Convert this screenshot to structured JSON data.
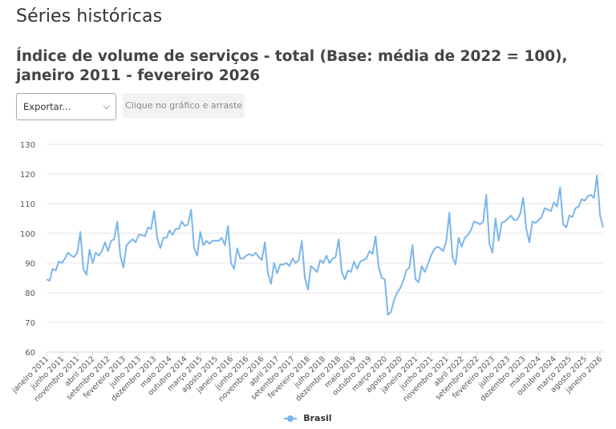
{
  "page": {
    "title": "Séries históricas",
    "export_label": "Exportar...",
    "drag_hint": "Clique no gráfico e arraste"
  },
  "colors": {
    "series": "#7cb5ec",
    "grid": "#e6e6e6",
    "text": "#333333"
  },
  "chart_data": {
    "type": "line",
    "title": "Índice de volume de serviços - total (Base: média de 2022 = 100), janeiro 2011 - fevereiro 2026",
    "ylim": [
      60,
      130
    ],
    "yticks": [
      60,
      70,
      80,
      90,
      100,
      110,
      120,
      130
    ],
    "grid": true,
    "legend_position": "bottom-center",
    "x_start": "2011-01",
    "x_end": "2026-02",
    "xtick_labels": [
      "janeiro 2011",
      "junho 2011",
      "novembro 2011",
      "abril 2012",
      "setembro 2012",
      "fevereiro 2013",
      "julho 2013",
      "dezembro 2013",
      "maio 2014",
      "outubro 2014",
      "março 2015",
      "agosto 2015",
      "janeiro 2016",
      "junho 2016",
      "novembro 2016",
      "abril 2017",
      "setembro 2017",
      "fevereiro 2018",
      "julho 2018",
      "dezembro 2018",
      "maio 2019",
      "outubro 2019",
      "março 2020",
      "agosto 2020",
      "janeiro 2021",
      "junho 2021",
      "novembro 2021",
      "abril 2022",
      "setembro 2022",
      "fevereiro 2023",
      "julho 2023",
      "dezembro 2023",
      "maio 2024",
      "outubro 2024",
      "março 2025",
      "agosto 2025",
      "janeiro 2026"
    ],
    "series": [
      {
        "name": "Brasil",
        "values": [
          84.5,
          84.0,
          88.0,
          87.5,
          90.5,
          90.0,
          91.5,
          93.5,
          92.5,
          92.0,
          93.5,
          100.5,
          88.0,
          86.0,
          94.5,
          90.0,
          93.5,
          92.5,
          94.0,
          97.0,
          94.0,
          97.5,
          98.0,
          104.0,
          92.5,
          88.5,
          96.0,
          97.0,
          98.0,
          97.0,
          99.5,
          99.5,
          99.0,
          102.0,
          101.5,
          107.5,
          98.5,
          95.0,
          98.5,
          98.5,
          101.0,
          99.5,
          101.5,
          101.5,
          104.0,
          102.5,
          103.0,
          108.0,
          95.0,
          92.5,
          100.5,
          96.0,
          97.5,
          96.5,
          97.5,
          97.5,
          97.5,
          98.5,
          96.0,
          102.5,
          90.0,
          88.0,
          95.0,
          91.5,
          91.5,
          92.5,
          93.0,
          92.5,
          93.5,
          92.0,
          91.0,
          97.0,
          86.5,
          83.0,
          90.0,
          86.5,
          89.5,
          89.5,
          90.0,
          89.0,
          91.5,
          90.0,
          91.0,
          97.5,
          85.0,
          81.0,
          89.0,
          88.0,
          87.0,
          91.0,
          90.0,
          92.5,
          90.0,
          91.5,
          92.0,
          98.0,
          87.0,
          84.5,
          87.5,
          87.0,
          90.5,
          88.0,
          90.5,
          91.0,
          91.5,
          94.0,
          93.0,
          99.0,
          88.5,
          85.0,
          84.5,
          72.5,
          73.5,
          77.5,
          80.0,
          81.5,
          84.0,
          87.5,
          88.5,
          96.0,
          84.5,
          83.5,
          89.0,
          87.0,
          89.5,
          92.5,
          94.5,
          95.5,
          95.0,
          94.0,
          97.5,
          107.0,
          92.0,
          89.5,
          98.5,
          95.5,
          98.5,
          99.5,
          101.0,
          104.0,
          103.5,
          103.0,
          104.0,
          113.0,
          96.5,
          93.5,
          105.0,
          97.5,
          103.5,
          104.0,
          105.0,
          106.0,
          104.5,
          104.5,
          106.5,
          112.0,
          101.5,
          97.0,
          104.0,
          103.5,
          104.5,
          105.5,
          108.5,
          108.0,
          107.5,
          110.5,
          109.0,
          115.5,
          103.0,
          102.0,
          106.0,
          105.5,
          108.5,
          109.0,
          111.5,
          111.0,
          112.5,
          113.0,
          112.0,
          119.5,
          106.0,
          102.0
        ]
      }
    ]
  }
}
